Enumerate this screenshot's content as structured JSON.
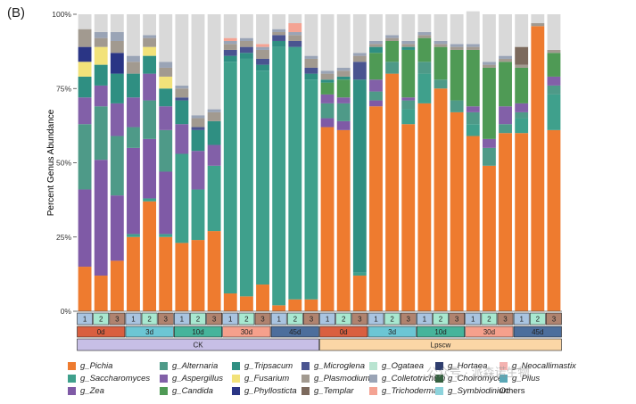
{
  "panel_label": "(B)",
  "watermark": "公众号 · 派森诺生物",
  "chart_data": {
    "type": "bar",
    "stacked": true,
    "ylabel": "Percent Genus Abundance",
    "ylim": [
      0,
      100
    ],
    "yticks": [
      "0%",
      "25%",
      "50%",
      "75%",
      "100%"
    ],
    "replicate_labels": [
      "1",
      "2",
      "3",
      "1",
      "2",
      "3",
      "1",
      "2",
      "3",
      "1",
      "2",
      "3",
      "1",
      "2",
      "3",
      "1",
      "2",
      "3",
      "1",
      "2",
      "3",
      "1",
      "2",
      "3",
      "1",
      "2",
      "3",
      "1",
      "2",
      "3"
    ],
    "replicate_colors": {
      "1": "#a9c4e0",
      "2": "#a8e8d0",
      "3": "#b0836f"
    },
    "time_groups": [
      {
        "label": "0d",
        "color": "#d95f40"
      },
      {
        "label": "3d",
        "color": "#6cc6d4"
      },
      {
        "label": "10d",
        "color": "#46b49b"
      },
      {
        "label": "30d",
        "color": "#f5a08c"
      },
      {
        "label": "45d",
        "color": "#4c6e9c"
      },
      {
        "label": "0d",
        "color": "#d95f40"
      },
      {
        "label": "3d",
        "color": "#6cc6d4"
      },
      {
        "label": "10d",
        "color": "#46b49b"
      },
      {
        "label": "30d",
        "color": "#f5a08c"
      },
      {
        "label": "45d",
        "color": "#4c6e9c"
      }
    ],
    "treatments": [
      {
        "label": "CK",
        "color": "#c7bfe6"
      },
      {
        "label": "Lpscw",
        "color": "#fbd6a6"
      }
    ],
    "series": [
      {
        "name": "g_Pichia",
        "color": "#ee7b2f",
        "values": [
          15,
          12,
          17,
          25,
          37,
          25,
          23,
          24,
          27,
          6,
          5,
          9,
          2,
          4,
          4,
          62,
          61,
          12,
          69,
          80,
          63,
          70,
          75,
          67,
          59,
          49,
          60,
          60,
          96,
          61
        ]
      },
      {
        "name": "g_Saccharomyces",
        "color": "#3fa08c",
        "values": [
          0,
          0,
          0,
          1,
          1,
          1,
          30,
          17,
          22,
          78,
          80,
          72,
          87,
          85,
          74,
          0,
          0,
          1,
          0,
          0,
          5,
          10,
          0,
          0,
          4,
          0,
          0,
          5,
          0,
          12
        ]
      },
      {
        "name": "g_Zea",
        "color": "#7f5aa6",
        "values": [
          26,
          39,
          22,
          29,
          20,
          21,
          0,
          0,
          0,
          0,
          0,
          0,
          0,
          0,
          0,
          3,
          3,
          0,
          2,
          0,
          0,
          0,
          0,
          0,
          0,
          0,
          0,
          0,
          0,
          0
        ]
      },
      {
        "name": "g_Alternaria",
        "color": "#4e9a88",
        "values": [
          22,
          18,
          20,
          7,
          13,
          14,
          0,
          0,
          0,
          0,
          0,
          0,
          0,
          0,
          0,
          5,
          6,
          0,
          3,
          4,
          3,
          4,
          3,
          4,
          4,
          6,
          3,
          2,
          0,
          3
        ]
      },
      {
        "name": "g_Aspergillus",
        "color": "#8260a8",
        "values": [
          9,
          7,
          11,
          10,
          9,
          8,
          10,
          13,
          7,
          0,
          0,
          0,
          0,
          0,
          0,
          3,
          2,
          0,
          4,
          0,
          1,
          0,
          0,
          0,
          2,
          3,
          6,
          3,
          0,
          3
        ]
      },
      {
        "name": "g_Candida",
        "color": "#4f9a55",
        "values": [
          0,
          0,
          0,
          0,
          0,
          0,
          0,
          0,
          0,
          0,
          0,
          0,
          0,
          0,
          0,
          4,
          6,
          0,
          9,
          7,
          16,
          8,
          11,
          17,
          19,
          24,
          15,
          12,
          0,
          8
        ]
      },
      {
        "name": "g_Tripsacum",
        "color": "#2f8f82",
        "values": [
          7,
          7,
          10,
          8,
          6,
          6,
          8,
          7,
          8,
          2,
          2,
          2,
          2,
          0,
          2,
          1,
          1,
          65,
          2,
          0,
          1,
          0,
          0,
          0,
          0,
          0,
          0,
          0,
          0,
          0
        ]
      },
      {
        "name": "g_Fusarium",
        "color": "#f2e27a",
        "values": [
          5,
          6,
          0,
          0,
          3,
          4,
          0,
          0,
          0,
          0,
          0,
          0,
          0,
          0,
          0,
          0,
          0,
          0,
          0,
          0,
          0,
          0,
          0,
          0,
          0,
          0,
          0,
          0,
          0,
          0
        ]
      },
      {
        "name": "g_Phyllosticta",
        "color": "#2a3585",
        "values": [
          5,
          0,
          7,
          0,
          0,
          0,
          0,
          0,
          0,
          0,
          0,
          0,
          0,
          0,
          0,
          0,
          0,
          0,
          0,
          0,
          0,
          0,
          0,
          0,
          0,
          0,
          0,
          0,
          0,
          0
        ]
      },
      {
        "name": "g_Microglena",
        "color": "#4a5490",
        "values": [
          0,
          0,
          0,
          0,
          0,
          0,
          1,
          1,
          0,
          2,
          2,
          2,
          2,
          2,
          2,
          0,
          0,
          6,
          0,
          0,
          0,
          0,
          0,
          0,
          0,
          0,
          0,
          0,
          0,
          0
        ]
      },
      {
        "name": "g_Plasmodium",
        "color": "#a29a90",
        "values": [
          6,
          3,
          4,
          4,
          3,
          3,
          3,
          3,
          3,
          2,
          2,
          3,
          1,
          2,
          3,
          2,
          2,
          2,
          1,
          1,
          1,
          1,
          1,
          1,
          1,
          1,
          1,
          1,
          1,
          1
        ]
      },
      {
        "name": "g_Templar",
        "color": "#7c6a5d",
        "values": [
          0,
          0,
          0,
          0,
          0,
          0,
          0,
          0,
          0,
          0,
          0,
          0,
          0,
          0,
          0,
          0,
          0,
          0,
          0,
          0,
          0,
          0,
          0,
          0,
          0,
          0,
          0,
          6,
          0,
          0
        ]
      },
      {
        "name": "g_Ogataea",
        "color": "#b9e4d1",
        "values": [
          0,
          0,
          0,
          0,
          0,
          0,
          0,
          0,
          0,
          0,
          0,
          0,
          0,
          0,
          0,
          0,
          0,
          0,
          0,
          0,
          0,
          0,
          0,
          0,
          0,
          0,
          0,
          0,
          0,
          0
        ]
      },
      {
        "name": "g_Colletotrichum",
        "color": "#9aa4b6",
        "values": [
          0,
          2,
          3,
          2,
          1,
          2,
          1,
          1,
          1,
          1,
          1,
          1,
          1,
          1,
          1,
          1,
          1,
          1,
          1,
          1,
          1,
          1,
          1,
          1,
          1,
          1,
          1,
          0,
          0,
          0
        ]
      },
      {
        "name": "g_Trichoderma",
        "color": "#f4a393",
        "values": [
          0,
          0,
          0,
          0,
          0,
          0,
          0,
          0,
          0,
          1,
          0,
          1,
          0,
          3,
          0,
          0,
          0,
          0,
          0,
          0,
          0,
          0,
          0,
          0,
          0,
          0,
          0,
          0,
          0,
          0
        ]
      },
      {
        "name": "g_Hortaea",
        "color": "#2f3e6e",
        "values": [
          0,
          0,
          0,
          0,
          0,
          0,
          0,
          0,
          0,
          0,
          0,
          0,
          0,
          0,
          0,
          0,
          0,
          0,
          0,
          0,
          0,
          0,
          0,
          0,
          0,
          0,
          0,
          0,
          0,
          0
        ]
      },
      {
        "name": "g_Choiromyces",
        "color": "#35603f",
        "values": [
          0,
          0,
          0,
          0,
          0,
          0,
          0,
          0,
          0,
          0,
          0,
          0,
          0,
          0,
          0,
          0,
          0,
          0,
          0,
          0,
          0,
          0,
          0,
          0,
          0,
          0,
          0,
          0,
          0,
          0
        ]
      },
      {
        "name": "g_Symbiodinium",
        "color": "#8dd3dc",
        "values": [
          0,
          0,
          0,
          0,
          0,
          0,
          0,
          0,
          0,
          0,
          0,
          0,
          0,
          0,
          0,
          0,
          0,
          0,
          0,
          0,
          0,
          0,
          0,
          0,
          0,
          0,
          0,
          0,
          0,
          0
        ]
      },
      {
        "name": "g_Neocallimastix",
        "color": "#f4b2b0",
        "values": [
          0,
          0,
          0,
          0,
          0,
          0,
          0,
          0,
          0,
          0,
          0,
          0,
          0,
          0,
          0,
          0,
          0,
          0,
          0,
          0,
          0,
          0,
          0,
          0,
          0,
          0,
          0,
          0,
          0,
          0
        ]
      },
      {
        "name": "g_Pilus",
        "color": "#5aa7b6",
        "values": [
          0,
          0,
          0,
          0,
          0,
          0,
          0,
          0,
          0,
          0,
          0,
          0,
          0,
          0,
          0,
          0,
          0,
          0,
          0,
          0,
          0,
          0,
          0,
          0,
          0,
          0,
          0,
          0,
          0,
          0
        ]
      },
      {
        "name": "Others",
        "color": "#d9d9d9",
        "values": [
          5,
          6,
          6,
          14,
          7,
          16,
          24,
          34,
          32,
          8,
          8,
          10,
          5,
          3,
          14,
          19,
          18,
          13,
          9,
          7,
          9,
          6,
          9,
          10,
          11,
          16,
          14,
          11,
          3,
          12
        ]
      }
    ],
    "legend": {
      "columns": 6,
      "items": [
        "g_Pichia",
        "g_Alternaria",
        "g_Tripsacum",
        "g_Microglena",
        "g_Ogataea",
        "g_Hortaea",
        "g_Neocallimastix",
        "g_Saccharomyces",
        "g_Aspergillus",
        "g_Fusarium",
        "g_Plasmodium",
        "g_Colletotrichum",
        "g_Choiromyces",
        "g_Pilus",
        "g_Zea",
        "g_Candida",
        "g_Phyllosticta",
        "g_Templar",
        "g_Trichoderma",
        "g_Symbiodinium",
        "Others"
      ]
    }
  }
}
